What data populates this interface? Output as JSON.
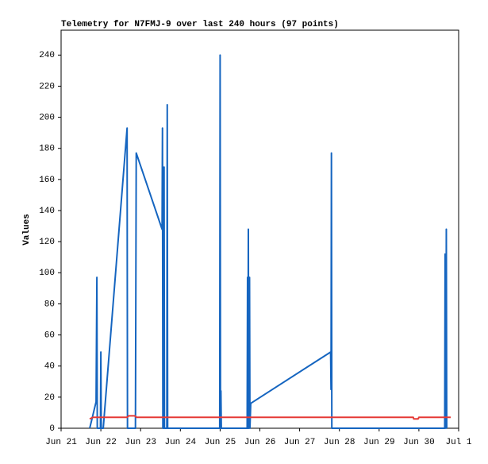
{
  "chart_data": {
    "type": "line",
    "title": "Telemetry for N7FMJ-9 over last 240 hours (97 points)",
    "ylabel": "Values",
    "xlim": [
      0,
      10
    ],
    "ylim": [
      0,
      256
    ],
    "xticks": [
      {
        "value": 0,
        "label": "Jun 21"
      },
      {
        "value": 1,
        "label": "Jun 22"
      },
      {
        "value": 2,
        "label": "Jun 23"
      },
      {
        "value": 3,
        "label": "Jun 24"
      },
      {
        "value": 4,
        "label": "Jun 25"
      },
      {
        "value": 5,
        "label": "Jun 26"
      },
      {
        "value": 6,
        "label": "Jun 27"
      },
      {
        "value": 7,
        "label": "Jun 28"
      },
      {
        "value": 8,
        "label": "Jun 29"
      },
      {
        "value": 9,
        "label": "Jun 30"
      },
      {
        "value": 10,
        "label": "Jul 1"
      }
    ],
    "yticks": [
      0,
      20,
      40,
      60,
      80,
      100,
      120,
      140,
      160,
      180,
      200,
      220,
      240
    ],
    "series": [
      {
        "color": "#1565c0",
        "x": [
          0.72,
          0.88,
          0.9,
          0.91,
          0.99,
          1.0,
          1.01,
          1.06,
          1.66,
          1.67,
          1.87,
          1.88,
          1.89,
          2.54,
          2.55,
          2.56,
          2.58,
          2.59,
          2.6,
          2.66,
          2.67,
          2.68,
          3.99,
          4.0,
          4.01,
          4.02,
          4.03,
          4.68,
          4.69,
          4.7,
          4.71,
          4.72,
          4.74,
          4.75,
          4.77,
          6.78,
          6.79,
          6.8,
          6.81,
          9.65,
          9.66,
          9.68,
          9.69,
          9.7
        ],
        "values": [
          0,
          17,
          97,
          0,
          0,
          49,
          0,
          0,
          193,
          0,
          0,
          88,
          177,
          128,
          193,
          0,
          0,
          168,
          0,
          0,
          208,
          0,
          0,
          240,
          0,
          24,
          0,
          0,
          97,
          0,
          128,
          0,
          97,
          0,
          16,
          49,
          25,
          177,
          0,
          0,
          112,
          0,
          128,
          0
        ]
      },
      {
        "color": "#e53935",
        "x": [
          0.72,
          0.8,
          1.66,
          1.7,
          1.85,
          1.9,
          8.86,
          8.87,
          8.98,
          9.0,
          9.8
        ],
        "values": [
          6,
          7,
          7,
          8,
          8,
          7,
          7,
          6,
          6,
          7,
          7
        ]
      }
    ]
  }
}
